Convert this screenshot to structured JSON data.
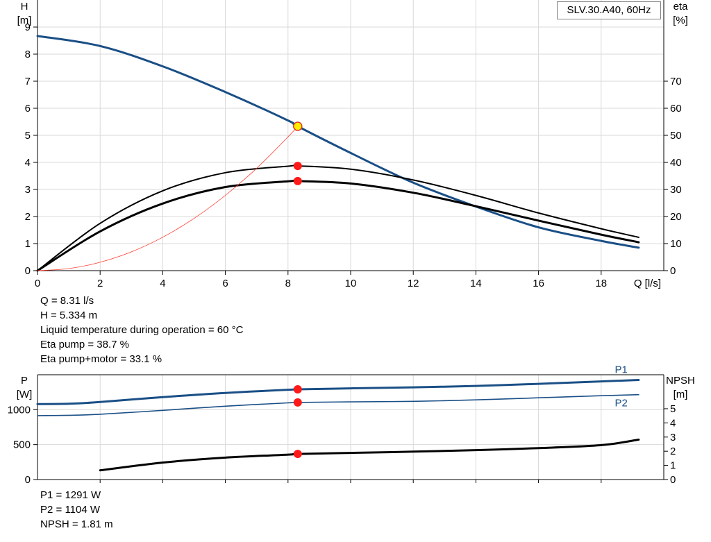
{
  "chart_data": [
    {
      "type": "line",
      "title": "SLV.30.A40, 60Hz",
      "xlabel": "Q [l/s]",
      "ylabel_left": [
        "H",
        "[m]"
      ],
      "ylabel_right": [
        "eta",
        "[%]"
      ],
      "xlim": [
        0,
        20
      ],
      "ylim_left": [
        0,
        10
      ],
      "ylim_right": [
        0,
        100
      ],
      "x_ticks": [
        0,
        2,
        4,
        6,
        8,
        10,
        12,
        14,
        16,
        18
      ],
      "y_ticks_left": [
        0,
        1,
        2,
        3,
        4,
        5,
        6,
        7,
        8,
        9
      ],
      "y_ticks_right": [
        0,
        10,
        20,
        30,
        40,
        50,
        60,
        70
      ],
      "grid": true,
      "series": [
        {
          "axis": "left",
          "color": "#1a4f86",
          "width": 3,
          "x": [
            0,
            2,
            4,
            6,
            8,
            8.31,
            10,
            12,
            14,
            16,
            18,
            19.2
          ],
          "y": [
            8.67,
            8.3,
            7.55,
            6.6,
            5.55,
            5.334,
            4.35,
            3.25,
            2.37,
            1.6,
            1.1,
            0.85
          ]
        },
        {
          "axis": "right",
          "color": "#000000",
          "width": 2,
          "x": [
            0,
            2,
            4,
            6,
            8,
            8.31,
            10,
            12,
            14,
            16,
            18,
            19.2
          ],
          "y": [
            0,
            17.5,
            29.5,
            36.2,
            38.6,
            38.7,
            37.5,
            33.5,
            27.8,
            21.3,
            15.5,
            12.3
          ]
        },
        {
          "axis": "right",
          "color": "#000000",
          "width": 3,
          "x": [
            0,
            2,
            4,
            6,
            8,
            8.31,
            10,
            12,
            14,
            16,
            18,
            19.2
          ],
          "y": [
            0,
            14.5,
            24.8,
            30.9,
            33.0,
            33.1,
            32.2,
            28.8,
            23.8,
            18.5,
            13.3,
            10.5
          ]
        },
        {
          "axis": "left",
          "color": "#ff3b30",
          "width": 0.8,
          "x": [
            0,
            1,
            2,
            3,
            4,
            5,
            6,
            7,
            8,
            8.31
          ],
          "y": [
            0,
            0.077,
            0.309,
            0.695,
            1.236,
            1.931,
            2.781,
            3.785,
            4.944,
            5.334
          ]
        }
      ],
      "markers": [
        {
          "axis": "left",
          "x": 8.31,
          "y": 5.334,
          "style": "yellow"
        },
        {
          "axis": "right",
          "x": 8.31,
          "y": 38.7,
          "style": "red"
        },
        {
          "axis": "right",
          "x": 8.31,
          "y": 33.1,
          "style": "red"
        }
      ]
    },
    {
      "type": "line",
      "xlim": [
        0,
        20
      ],
      "ylabel_left": [
        "P",
        "[W]"
      ],
      "ylabel_right": [
        "NPSH",
        "[m]"
      ],
      "ylim_left": [
        0,
        1500
      ],
      "ylim_right": [
        0,
        7.4
      ],
      "y_ticks_left": [
        0,
        500,
        1000
      ],
      "y_ticks_right": [
        0,
        1,
        2,
        3,
        4,
        5
      ],
      "grid": true,
      "series": [
        {
          "name": "P1",
          "axis": "left",
          "color": "#1a4f86",
          "width": 3,
          "x": [
            0,
            1,
            2,
            4,
            6,
            8,
            8.31,
            10,
            12,
            14,
            16,
            18,
            19.2
          ],
          "y": [
            1080,
            1085,
            1110,
            1180,
            1240,
            1285,
            1291,
            1305,
            1320,
            1340,
            1370,
            1405,
            1425
          ]
        },
        {
          "name": "P2",
          "axis": "left",
          "color": "#1a4f86",
          "width": 1.6,
          "x": [
            0,
            1,
            2,
            4,
            6,
            8,
            8.31,
            10,
            12,
            14,
            16,
            18,
            19.2
          ],
          "y": [
            915,
            920,
            935,
            990,
            1050,
            1098,
            1104,
            1112,
            1120,
            1140,
            1170,
            1200,
            1215
          ]
        },
        {
          "axis": "right",
          "color": "#000000",
          "width": 3,
          "x": [
            2,
            4,
            6,
            8,
            8.31,
            10,
            12,
            14,
            16,
            18,
            19.2
          ],
          "y": [
            0.65,
            1.2,
            1.55,
            1.76,
            1.81,
            1.88,
            1.97,
            2.08,
            2.22,
            2.43,
            2.82
          ]
        }
      ],
      "markers": [
        {
          "axis": "left",
          "x": 8.31,
          "y": 1291,
          "style": "red"
        },
        {
          "axis": "left",
          "x": 8.31,
          "y": 1104,
          "style": "red"
        },
        {
          "axis": "right",
          "x": 8.31,
          "y": 1.81,
          "style": "red"
        }
      ]
    }
  ],
  "info_top": [
    "Q = 8.31 l/s",
    "H = 5.334 m",
    "Liquid temperature during operation = 60 °C",
    "Eta pump = 38.7 %",
    "Eta pump+motor = 33.1 %"
  ],
  "info_bottom": [
    "P1 = 1291 W",
    "P2 = 1104 W",
    "NPSH = 1.81 m"
  ]
}
